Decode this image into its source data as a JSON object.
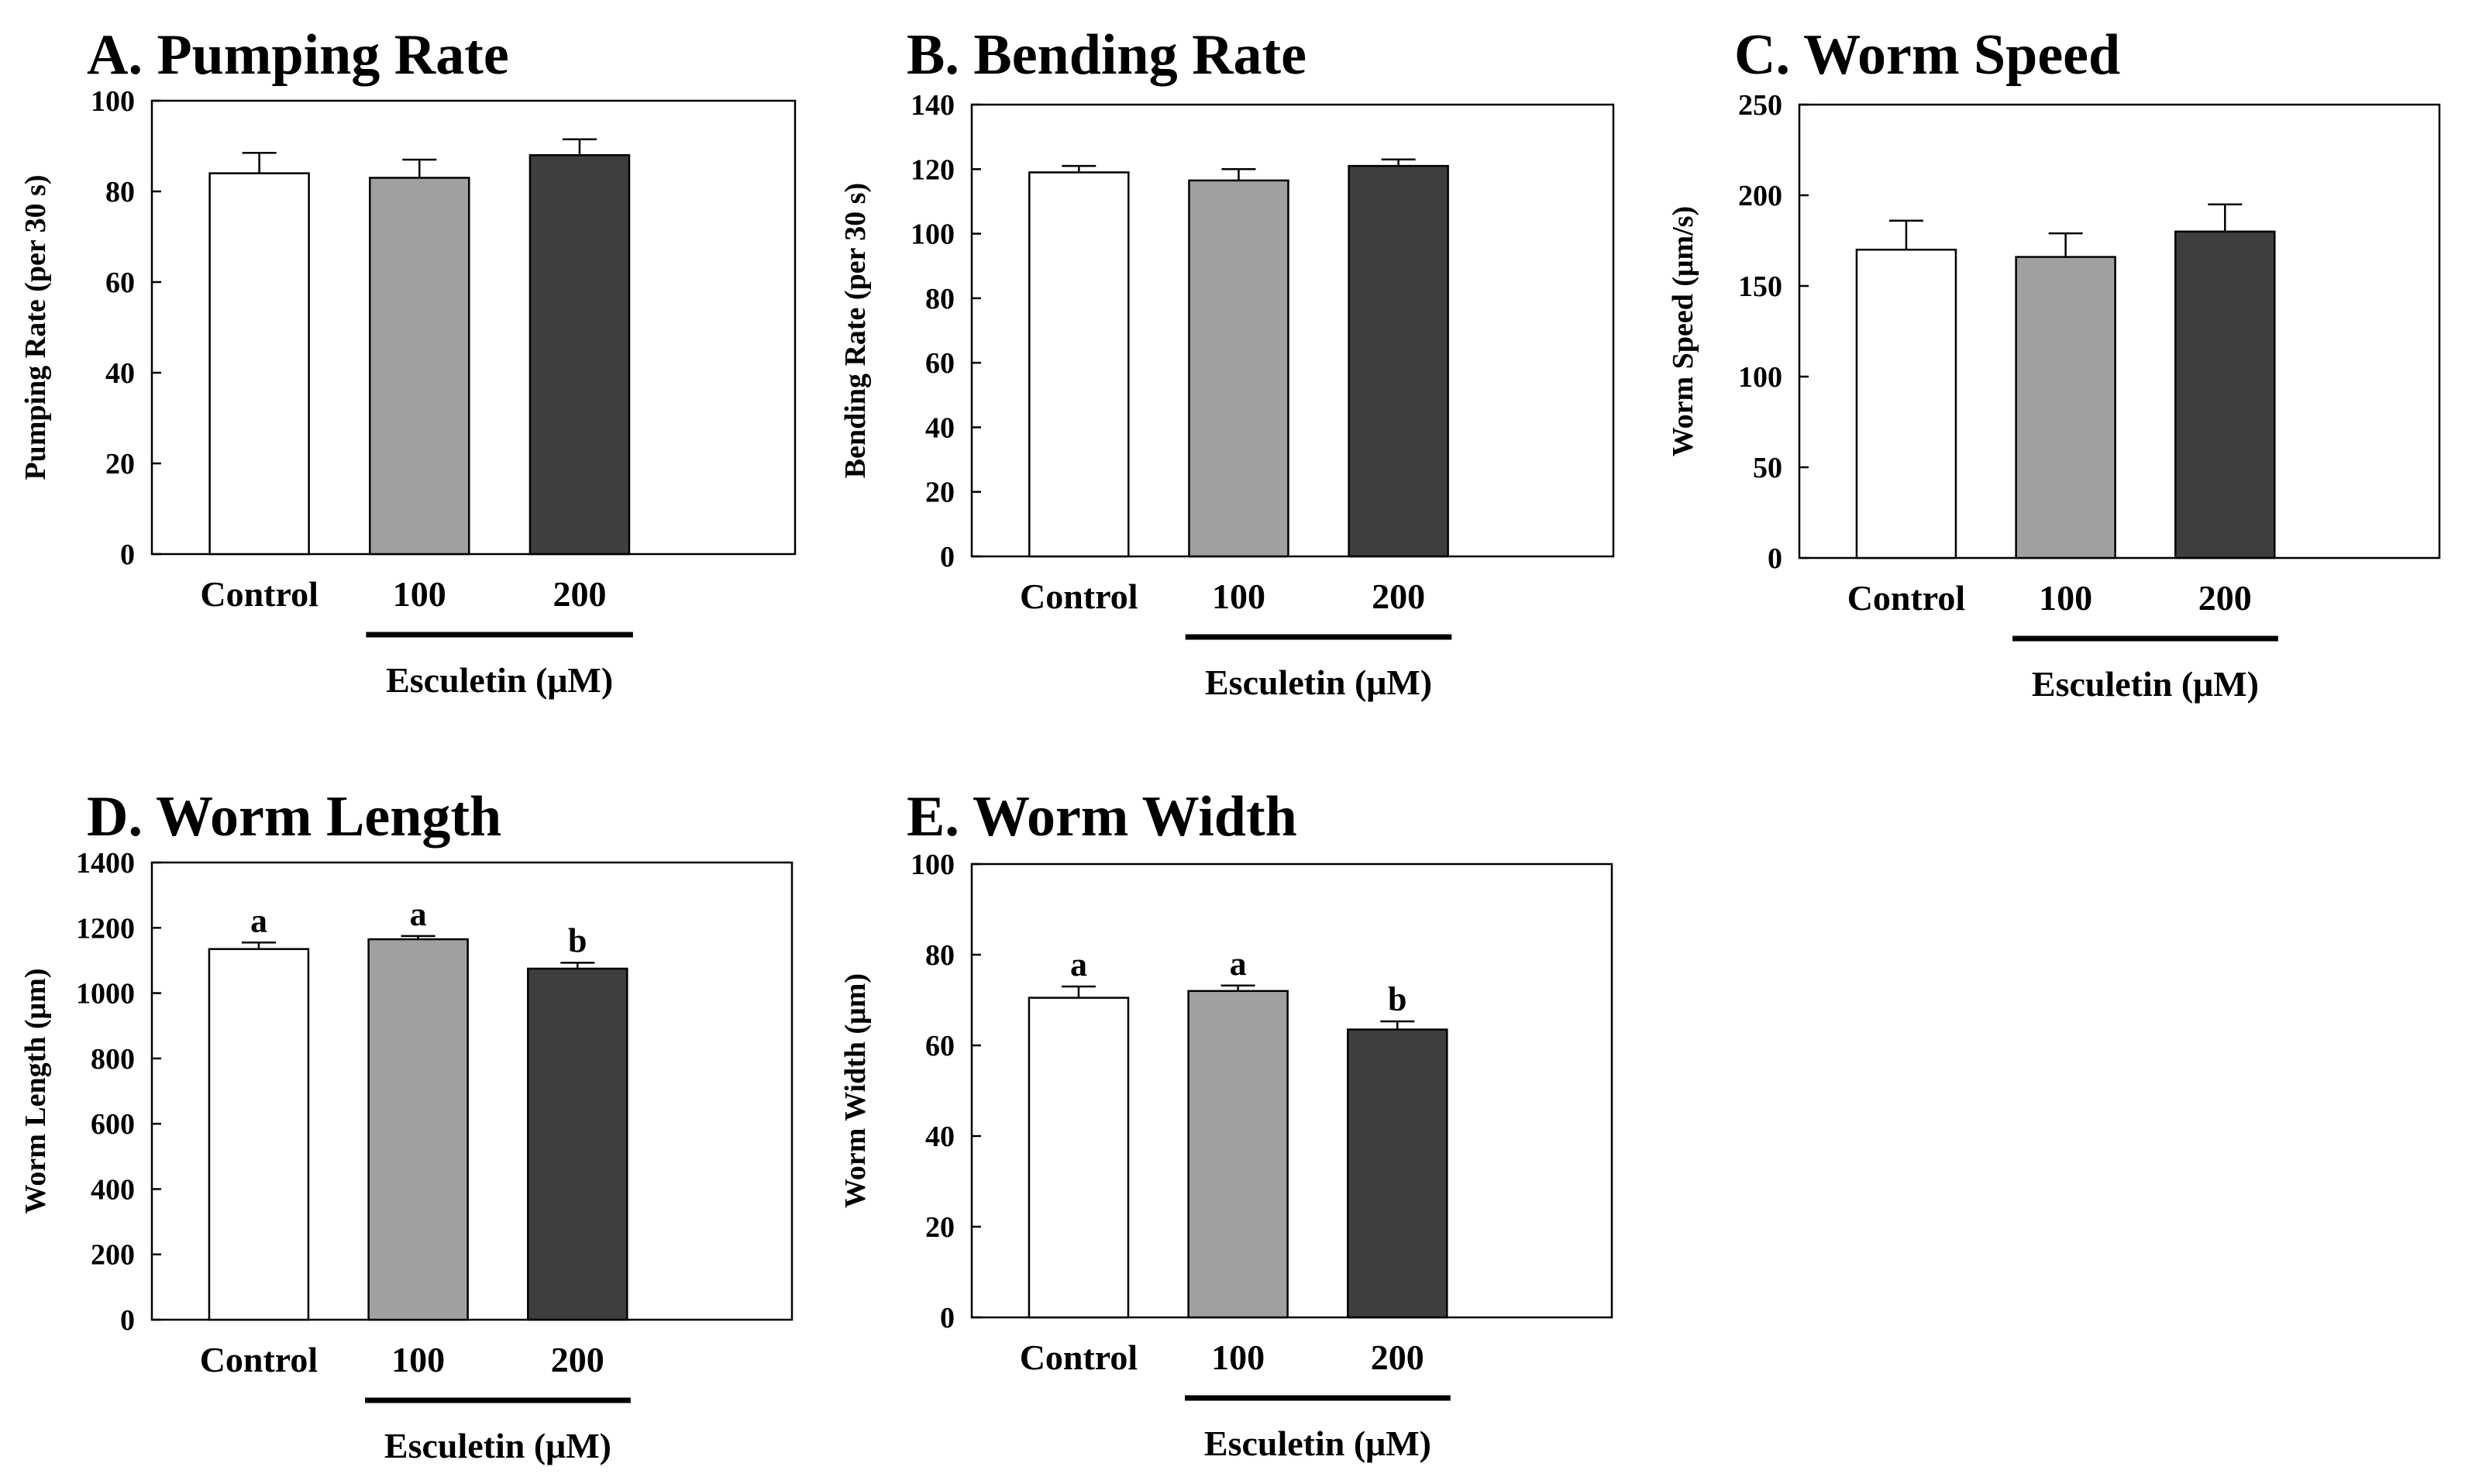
{
  "figure": {
    "colors": {
      "control": "#ffffff",
      "dose100": "#a0a0a0",
      "dose200": "#3e3e3e",
      "axis": "#000000"
    }
  },
  "chart_data": [
    {
      "id": "A",
      "type": "bar",
      "title": "A. Pumping Rate",
      "ylabel": "Pumping Rate (per 30 s)",
      "xlabel": "",
      "ylim": [
        0,
        100
      ],
      "yticks": [
        0,
        20,
        40,
        60,
        80,
        100
      ],
      "categories": [
        "Control",
        "100",
        "200"
      ],
      "group_label": "Esculetin (μM)",
      "values": [
        84,
        83,
        88
      ],
      "errors": [
        4.5,
        4,
        3.5
      ],
      "sig_letters": [
        "",
        "",
        ""
      ]
    },
    {
      "id": "B",
      "type": "bar",
      "title": "B. Bending Rate",
      "ylabel": "Bending Rate (per 30 s)",
      "xlabel": "",
      "ylim": [
        0,
        140
      ],
      "yticks": [
        0,
        20,
        40,
        60,
        80,
        100,
        120,
        140
      ],
      "categories": [
        "Control",
        "100",
        "200"
      ],
      "group_label": "Esculetin (μM)",
      "values": [
        119,
        116.5,
        121
      ],
      "errors": [
        2,
        3.5,
        2
      ],
      "sig_letters": [
        "",
        "",
        ""
      ]
    },
    {
      "id": "C",
      "type": "bar",
      "title": "C. Worm Speed",
      "ylabel": "Worm Speed (μm/s)",
      "xlabel": "",
      "ylim": [
        0,
        250
      ],
      "yticks": [
        0,
        50,
        100,
        150,
        200,
        250
      ],
      "categories": [
        "Control",
        "100",
        "200"
      ],
      "group_label": "Esculetin (μM)",
      "values": [
        170,
        166,
        180
      ],
      "errors": [
        16,
        13,
        15
      ],
      "sig_letters": [
        "",
        "",
        ""
      ]
    },
    {
      "id": "D",
      "type": "bar",
      "title": "D. Worm Length",
      "ylabel": "Worm Length (μm)",
      "xlabel": "",
      "ylim": [
        0,
        1400
      ],
      "yticks": [
        0,
        200,
        400,
        600,
        800,
        1000,
        1200,
        1400
      ],
      "categories": [
        "Control",
        "100",
        "200"
      ],
      "group_label": "Esculetin (μM)",
      "values": [
        1135,
        1165,
        1075
      ],
      "errors": [
        20,
        10,
        18
      ],
      "sig_letters": [
        "a",
        "a",
        "b"
      ]
    },
    {
      "id": "E",
      "type": "bar",
      "title": "E. Worm Width",
      "ylabel": "Worm Width (μm)",
      "xlabel": "",
      "ylim": [
        0,
        100
      ],
      "yticks": [
        0,
        20,
        40,
        60,
        80,
        100
      ],
      "categories": [
        "Control",
        "100",
        "200"
      ],
      "group_label": "Esculetin (μM)",
      "values": [
        70.5,
        72,
        63.5
      ],
      "errors": [
        2.5,
        1.2,
        1.8
      ],
      "sig_letters": [
        "a",
        "a",
        "b"
      ]
    }
  ]
}
